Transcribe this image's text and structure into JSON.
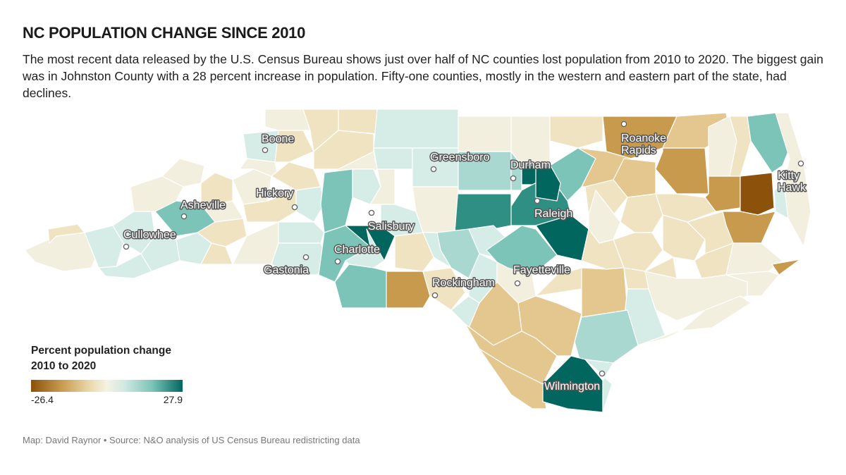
{
  "header": {
    "title": "NC POPULATION CHANGE SINCE 2010",
    "dek": "The most recent data released by the U.S. Census Bureau shows just over half of NC counties lost population from 2010 to 2020. The biggest gain was in Johnston County with a 28 percent increase in population. Fifty-one counties, mostly in the western and eastern part of the state, had declines."
  },
  "legend": {
    "title_line1": "Percent population change",
    "title_line2": "2010 to 2020",
    "min_label": "-26.4",
    "max_label": "27.9",
    "colors": [
      "#8c510a",
      "#c79a4e",
      "#e9d7a8",
      "#f5f2e3",
      "#cfe8e2",
      "#7cc4b8",
      "#01665e"
    ]
  },
  "cities": [
    {
      "name": "Boone",
      "label_lines": [
        "Boone"
      ]
    },
    {
      "name": "Greensboro",
      "label_lines": [
        "Greensboro"
      ]
    },
    {
      "name": "Durham",
      "label_lines": [
        "Durham"
      ]
    },
    {
      "name": "Roanoke Rapids",
      "label_lines": [
        "Roanoke",
        "Rapids"
      ]
    },
    {
      "name": "Kitty Hawk",
      "label_lines": [
        "Kitty",
        "Hawk"
      ]
    },
    {
      "name": "Hickory",
      "label_lines": [
        "Hickory"
      ]
    },
    {
      "name": "Asheville",
      "label_lines": [
        "Asheville"
      ]
    },
    {
      "name": "Raleigh",
      "label_lines": [
        "Raleigh"
      ]
    },
    {
      "name": "Salisbury",
      "label_lines": [
        "Salisbury"
      ]
    },
    {
      "name": "Cullowhee",
      "label_lines": [
        "Cullowhee"
      ]
    },
    {
      "name": "Charlotte",
      "label_lines": [
        "Charlotte"
      ]
    },
    {
      "name": "Gastonia",
      "label_lines": [
        "Gastonia"
      ]
    },
    {
      "name": "Fayetteville",
      "label_lines": [
        "Fayetteville"
      ]
    },
    {
      "name": "Rockingham",
      "label_lines": [
        "Rockingham"
      ]
    },
    {
      "name": "Wilmington",
      "label_lines": [
        "Wilmington"
      ]
    }
  ],
  "credit": "Map: David Raynor • Source: N&O analysis of US Census Bureau redistricting data"
}
